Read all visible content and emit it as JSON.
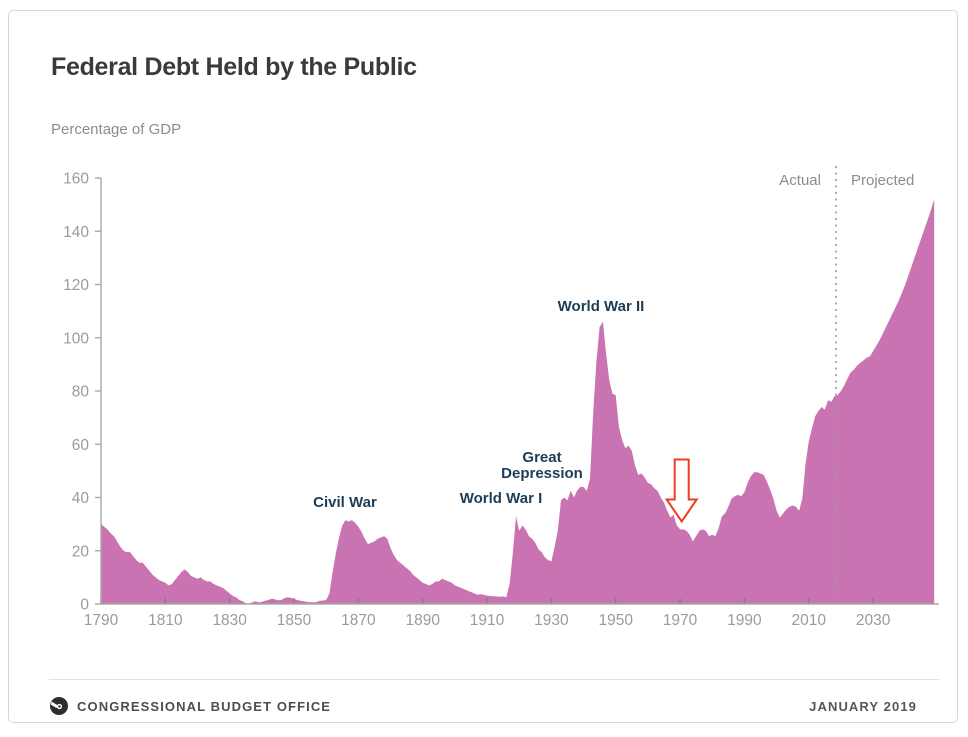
{
  "header": {
    "title": "Federal Debt Held by the Public",
    "subtitle": "Percentage of GDP"
  },
  "footer": {
    "org": "CONGRESSIONAL BUDGET OFFICE",
    "date": "JANUARY 2019",
    "logo": "cbo-logo"
  },
  "chart_data": {
    "type": "area",
    "title": "Federal Debt Held by the Public",
    "ylabel": "Percentage of GDP",
    "xlabel": "",
    "xlim": [
      1790,
      2049
    ],
    "ylim": [
      0,
      160
    ],
    "x_ticks": [
      1790,
      1810,
      1830,
      1850,
      1870,
      1890,
      1910,
      1930,
      1950,
      1970,
      1990,
      2010,
      2030
    ],
    "y_ticks": [
      0,
      20,
      40,
      60,
      80,
      100,
      120,
      140,
      160
    ],
    "grid": false,
    "legend_position": "none",
    "area_color": "#ca73b3",
    "axis_color": "#a8a8a8",
    "tick_label_color": "#9b9b9b",
    "annotation_color": "#1d3d55",
    "arrow_color": "#ee3b23",
    "divider_year": 2018.5,
    "divider_labels": {
      "left": "Actual",
      "right": "Projected"
    },
    "annotations": [
      {
        "text": "Civil War",
        "year": 1866,
        "value": 31
      },
      {
        "text": "World War I",
        "year": 1919,
        "value": 33
      },
      {
        "text": "Great Depression",
        "year": 1936,
        "value": 43
      },
      {
        "text": "World War II",
        "year": 1946,
        "value": 106
      },
      {
        "type": "down-arrow",
        "year": 1970.5,
        "tip_value": 31,
        "points_at": "post-WWII trough, about 23% of GDP in 1974"
      }
    ],
    "series": [
      {
        "name": "Federal debt held by the public (% of GDP)",
        "points": [
          [
            1790,
            30
          ],
          [
            1791,
            29
          ],
          [
            1792,
            28
          ],
          [
            1793,
            26.5
          ],
          [
            1794,
            25.5
          ],
          [
            1795,
            23.5
          ],
          [
            1796,
            21.5
          ],
          [
            1797,
            20
          ],
          [
            1798,
            19.5
          ],
          [
            1799,
            19.5
          ],
          [
            1800,
            18
          ],
          [
            1801,
            16.5
          ],
          [
            1802,
            15.5
          ],
          [
            1803,
            15.5
          ],
          [
            1804,
            14
          ],
          [
            1805,
            12.5
          ],
          [
            1806,
            11
          ],
          [
            1807,
            10
          ],
          [
            1808,
            9
          ],
          [
            1809,
            8.5
          ],
          [
            1810,
            8
          ],
          [
            1811,
            7
          ],
          [
            1812,
            7.5
          ],
          [
            1813,
            9
          ],
          [
            1814,
            10.5
          ],
          [
            1815,
            12
          ],
          [
            1816,
            13
          ],
          [
            1817,
            12
          ],
          [
            1818,
            10.5
          ],
          [
            1819,
            10
          ],
          [
            1820,
            9.5
          ],
          [
            1821,
            10
          ],
          [
            1822,
            9
          ],
          [
            1823,
            8.5
          ],
          [
            1824,
            8.5
          ],
          [
            1825,
            7.5
          ],
          [
            1826,
            7
          ],
          [
            1827,
            6.5
          ],
          [
            1828,
            6
          ],
          [
            1829,
            5
          ],
          [
            1830,
            4
          ],
          [
            1831,
            3
          ],
          [
            1832,
            2.5
          ],
          [
            1833,
            1.5
          ],
          [
            1834,
            1
          ],
          [
            1835,
            0.3
          ],
          [
            1836,
            0.2
          ],
          [
            1837,
            0.6
          ],
          [
            1838,
            1
          ],
          [
            1839,
            0.6
          ],
          [
            1840,
            0.8
          ],
          [
            1841,
            1.2
          ],
          [
            1842,
            1.5
          ],
          [
            1843,
            2
          ],
          [
            1844,
            1.8
          ],
          [
            1845,
            1.4
          ],
          [
            1846,
            1.5
          ],
          [
            1847,
            2.2
          ],
          [
            1848,
            2.5
          ],
          [
            1849,
            2.3
          ],
          [
            1850,
            1.9
          ],
          [
            1851,
            1.5
          ],
          [
            1852,
            1.2
          ],
          [
            1853,
            1
          ],
          [
            1854,
            0.8
          ],
          [
            1855,
            0.7
          ],
          [
            1856,
            0.6
          ],
          [
            1857,
            0.7
          ],
          [
            1858,
            1.2
          ],
          [
            1859,
            1.3
          ],
          [
            1860,
            1.5
          ],
          [
            1861,
            4
          ],
          [
            1862,
            12
          ],
          [
            1863,
            19
          ],
          [
            1864,
            25
          ],
          [
            1865,
            29.5
          ],
          [
            1866,
            31.5
          ],
          [
            1867,
            31
          ],
          [
            1868,
            31.5
          ],
          [
            1869,
            30.5
          ],
          [
            1870,
            29
          ],
          [
            1871,
            27
          ],
          [
            1872,
            24.5
          ],
          [
            1873,
            22.5
          ],
          [
            1874,
            23
          ],
          [
            1875,
            23.5
          ],
          [
            1876,
            24.5
          ],
          [
            1877,
            25
          ],
          [
            1878,
            25.5
          ],
          [
            1879,
            24.5
          ],
          [
            1880,
            21
          ],
          [
            1881,
            18.5
          ],
          [
            1882,
            16.5
          ],
          [
            1883,
            15.5
          ],
          [
            1884,
            14.5
          ],
          [
            1885,
            13.5
          ],
          [
            1886,
            12.5
          ],
          [
            1887,
            11
          ],
          [
            1888,
            10
          ],
          [
            1889,
            9
          ],
          [
            1890,
            8
          ],
          [
            1891,
            7.5
          ],
          [
            1892,
            7
          ],
          [
            1893,
            7.5
          ],
          [
            1894,
            8.5
          ],
          [
            1895,
            8.5
          ],
          [
            1896,
            9.5
          ],
          [
            1897,
            9
          ],
          [
            1898,
            8.5
          ],
          [
            1899,
            8
          ],
          [
            1900,
            7
          ],
          [
            1901,
            6.5
          ],
          [
            1902,
            6
          ],
          [
            1903,
            5.5
          ],
          [
            1904,
            5
          ],
          [
            1905,
            4.5
          ],
          [
            1906,
            4
          ],
          [
            1907,
            3.5
          ],
          [
            1908,
            3.7
          ],
          [
            1909,
            3.4
          ],
          [
            1910,
            3.2
          ],
          [
            1911,
            3
          ],
          [
            1912,
            2.9
          ],
          [
            1913,
            2.8
          ],
          [
            1914,
            2.7
          ],
          [
            1915,
            2.8
          ],
          [
            1916,
            2.5
          ],
          [
            1917,
            7.5
          ],
          [
            1918,
            19
          ],
          [
            1919,
            33
          ],
          [
            1920,
            27.5
          ],
          [
            1921,
            29.5
          ],
          [
            1922,
            28
          ],
          [
            1923,
            25.5
          ],
          [
            1924,
            24.5
          ],
          [
            1925,
            23
          ],
          [
            1926,
            20.5
          ],
          [
            1927,
            19.5
          ],
          [
            1928,
            17.5
          ],
          [
            1929,
            16.5
          ],
          [
            1930,
            16
          ],
          [
            1931,
            21.5
          ],
          [
            1932,
            27.5
          ],
          [
            1933,
            39
          ],
          [
            1934,
            40
          ],
          [
            1935,
            39
          ],
          [
            1936,
            42.5
          ],
          [
            1937,
            40
          ],
          [
            1938,
            42.5
          ],
          [
            1939,
            44
          ],
          [
            1940,
            44
          ],
          [
            1941,
            42.5
          ],
          [
            1942,
            47
          ],
          [
            1943,
            72
          ],
          [
            1944,
            91
          ],
          [
            1945,
            104
          ],
          [
            1946,
            106
          ],
          [
            1947,
            94
          ],
          [
            1948,
            84
          ],
          [
            1949,
            79
          ],
          [
            1950,
            78.5
          ],
          [
            1951,
            66.5
          ],
          [
            1952,
            61.5
          ],
          [
            1953,
            58.5
          ],
          [
            1954,
            59.5
          ],
          [
            1955,
            57.5
          ],
          [
            1956,
            52
          ],
          [
            1957,
            48.5
          ],
          [
            1958,
            49
          ],
          [
            1959,
            47.5
          ],
          [
            1960,
            45.5
          ],
          [
            1961,
            45
          ],
          [
            1962,
            43.5
          ],
          [
            1963,
            42.5
          ],
          [
            1964,
            40
          ],
          [
            1965,
            38
          ],
          [
            1966,
            35
          ],
          [
            1967,
            32.5
          ],
          [
            1968,
            33.5
          ],
          [
            1969,
            29.5
          ],
          [
            1970,
            28
          ],
          [
            1971,
            28
          ],
          [
            1972,
            27.5
          ],
          [
            1973,
            26
          ],
          [
            1974,
            23.5
          ],
          [
            1975,
            25.5
          ],
          [
            1976,
            27.5
          ],
          [
            1977,
            28
          ],
          [
            1978,
            27.5
          ],
          [
            1979,
            25.5
          ],
          [
            1980,
            26
          ],
          [
            1981,
            25.5
          ],
          [
            1982,
            28.5
          ],
          [
            1983,
            33
          ],
          [
            1984,
            34
          ],
          [
            1985,
            36.5
          ],
          [
            1986,
            39.5
          ],
          [
            1987,
            40.5
          ],
          [
            1988,
            41
          ],
          [
            1989,
            40.5
          ],
          [
            1990,
            42
          ],
          [
            1991,
            45.5
          ],
          [
            1992,
            48
          ],
          [
            1993,
            49.5
          ],
          [
            1994,
            49.5
          ],
          [
            1995,
            49
          ],
          [
            1996,
            48.5
          ],
          [
            1997,
            46
          ],
          [
            1998,
            43
          ],
          [
            1999,
            39.5
          ],
          [
            2000,
            35
          ],
          [
            2001,
            32.5
          ],
          [
            2002,
            34
          ],
          [
            2003,
            35.5
          ],
          [
            2004,
            36.5
          ],
          [
            2005,
            37
          ],
          [
            2006,
            36.5
          ],
          [
            2007,
            35
          ],
          [
            2008,
            39.5
          ],
          [
            2009,
            52.5
          ],
          [
            2010,
            61
          ],
          [
            2011,
            66
          ],
          [
            2012,
            70.5
          ],
          [
            2013,
            72.5
          ],
          [
            2014,
            74
          ],
          [
            2015,
            73
          ],
          [
            2016,
            76.5
          ],
          [
            2017,
            76
          ],
          [
            2018,
            78
          ],
          [
            2019,
            78.5
          ],
          [
            2020,
            80
          ],
          [
            2021,
            82
          ],
          [
            2022,
            84.5
          ],
          [
            2023,
            87
          ],
          [
            2024,
            88
          ],
          [
            2025,
            89.5
          ],
          [
            2026,
            90.5
          ],
          [
            2027,
            91.5
          ],
          [
            2028,
            92.5
          ],
          [
            2029,
            93
          ],
          [
            2030,
            95
          ],
          [
            2032,
            99
          ],
          [
            2034,
            104
          ],
          [
            2036,
            109
          ],
          [
            2038,
            114
          ],
          [
            2040,
            120
          ],
          [
            2042,
            127
          ],
          [
            2044,
            134
          ],
          [
            2046,
            141
          ],
          [
            2048,
            148
          ],
          [
            2049,
            152
          ]
        ]
      }
    ]
  }
}
